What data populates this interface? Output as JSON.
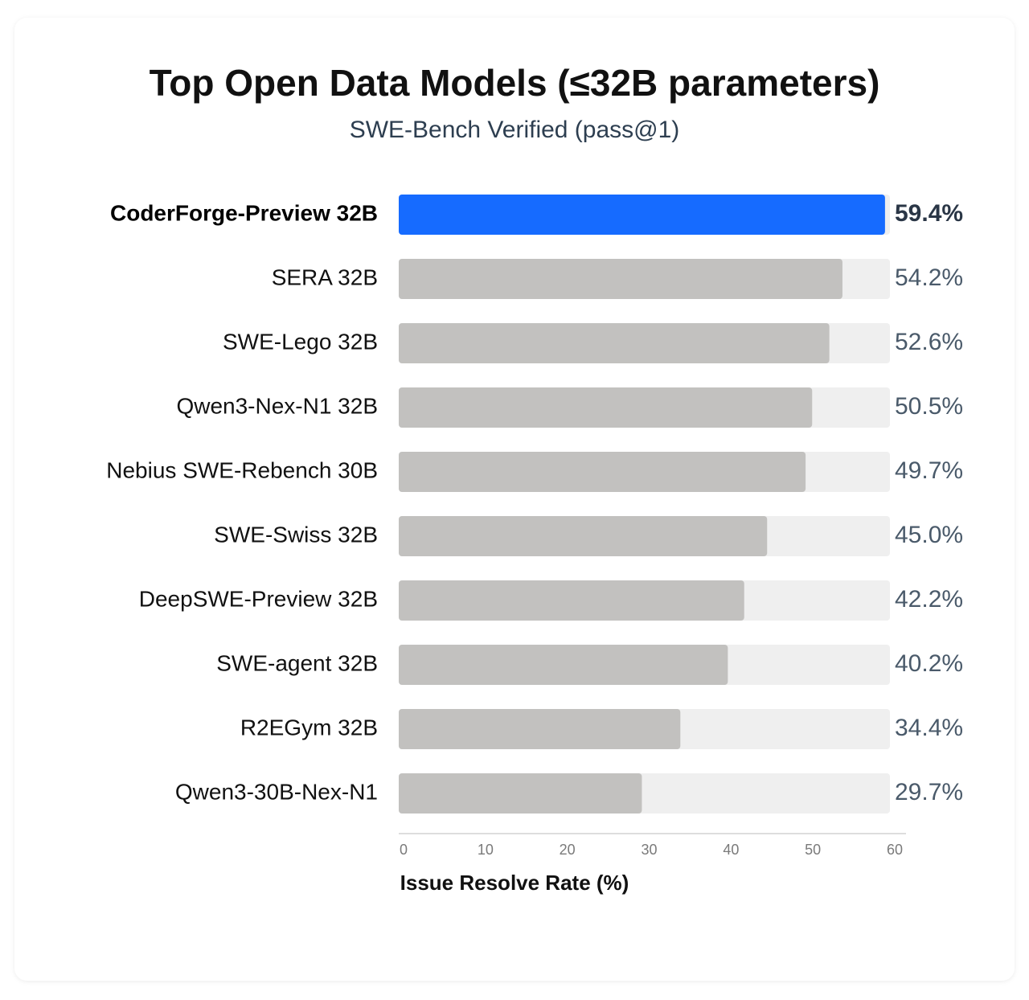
{
  "chart_data": {
    "type": "barh",
    "title": "Top Open Data Models (≤32B parameters)",
    "subtitle": "SWE-Bench Verified (pass@1)",
    "x_label": "Issue Resolve Rate (%)",
    "categories": [
      "CoderForge-Preview 32B",
      "SERA 32B",
      "SWE-Lego 32B",
      "Qwen3-Nex-N1 32B",
      "Nebius SWE-Rebench 30B",
      "SWE-Swiss 32B",
      "DeepSWE-Preview 32B",
      "SWE-agent 32B",
      "R2EGym 32B",
      "Qwen3-30B-Nex-N1"
    ],
    "values": [
      59.4,
      54.2,
      52.6,
      50.5,
      49.7,
      45.0,
      42.2,
      40.2,
      34.4,
      29.7
    ],
    "value_labels": [
      "59.4%",
      "54.2%",
      "52.6%",
      "50.5%",
      "49.7%",
      "45.0%",
      "42.2%",
      "40.2%",
      "34.4%",
      "29.7%"
    ],
    "colors": [
      "#166bff",
      "#c2c1bf",
      "#c2c1bf",
      "#c2c1bf",
      "#c2c1bf",
      "#c2c1bf",
      "#c2c1bf",
      "#c2c1bf",
      "#c2c1bf",
      "#c2c1bf"
    ],
    "track_color": "#efefef",
    "xlim": [
      0,
      60
    ],
    "xticks": [
      0,
      10,
      20,
      30,
      40,
      50,
      60
    ],
    "grid": false
  }
}
